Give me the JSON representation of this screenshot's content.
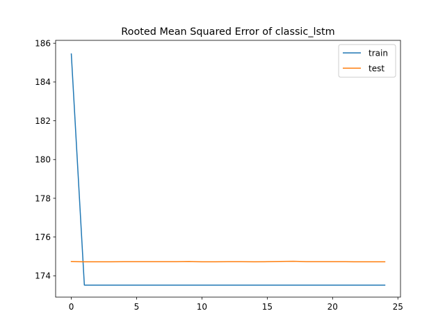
{
  "chart_data": {
    "type": "line",
    "title": "Rooted Mean Squared Error of classic_lstm",
    "xlabel": "",
    "ylabel": "",
    "xlim": [
      -1.2,
      25.2
    ],
    "ylim": [
      172.9,
      186.15
    ],
    "x_ticks": [
      0,
      5,
      10,
      15,
      20,
      25
    ],
    "y_ticks": [
      174,
      176,
      178,
      180,
      182,
      184,
      186
    ],
    "grid": false,
    "legend_position": "top-right",
    "x": [
      0,
      1,
      2,
      3,
      4,
      5,
      6,
      7,
      8,
      9,
      10,
      11,
      12,
      13,
      14,
      15,
      16,
      17,
      18,
      19,
      20,
      21,
      22,
      23,
      24
    ],
    "series": [
      {
        "name": "train",
        "color": "#1f77b4",
        "values": [
          185.45,
          173.52,
          173.52,
          173.52,
          173.52,
          173.52,
          173.52,
          173.52,
          173.52,
          173.52,
          173.52,
          173.52,
          173.52,
          173.52,
          173.52,
          173.52,
          173.52,
          173.52,
          173.52,
          173.52,
          173.52,
          173.52,
          173.52,
          173.52,
          173.52
        ]
      },
      {
        "name": "test",
        "color": "#ff7f0e",
        "values": [
          174.74,
          174.72,
          174.72,
          174.72,
          174.73,
          174.73,
          174.73,
          174.73,
          174.73,
          174.74,
          174.72,
          174.72,
          174.73,
          174.73,
          174.72,
          174.73,
          174.74,
          174.75,
          174.73,
          174.73,
          174.73,
          174.73,
          174.72,
          174.72,
          174.72
        ]
      }
    ]
  }
}
